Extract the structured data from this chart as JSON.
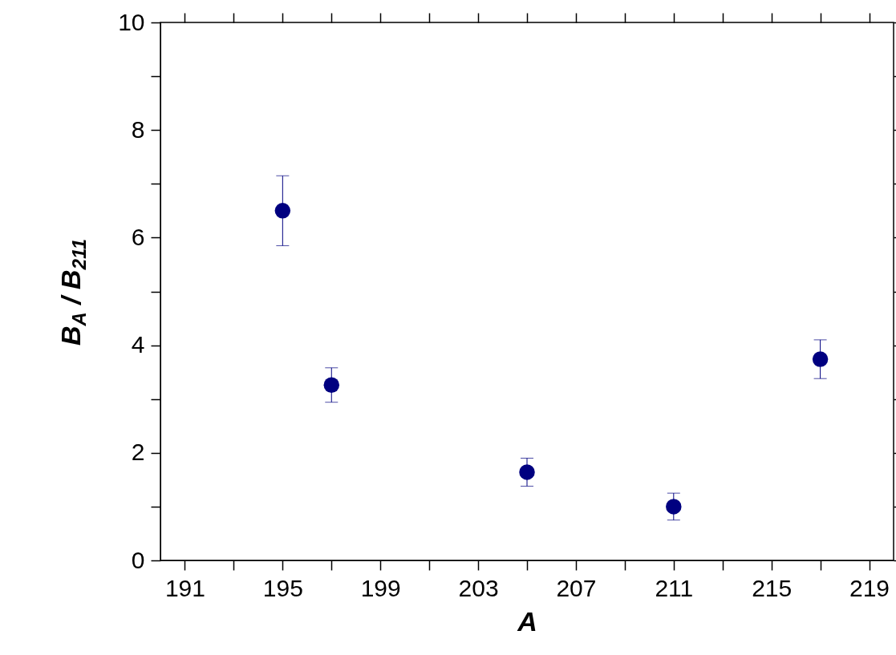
{
  "chart_data": {
    "type": "scatter",
    "xlabel": "A",
    "ylabel": "B$_{A}$ / B$_{211}$",
    "x": [
      195,
      197,
      205,
      211,
      217
    ],
    "series": [
      {
        "color": "#000080",
        "values": [
          6.5,
          3.26,
          1.64,
          1.0,
          3.74
        ],
        "errors": [
          0.65,
          0.32,
          0.26,
          0.25,
          0.36
        ]
      }
    ],
    "marker": "circle",
    "xlim": [
      190,
      220
    ],
    "xticks": [
      191,
      {
        "value": 193,
        "label": null
      },
      195,
      {
        "value": 197,
        "label": null
      },
      199,
      {
        "value": 201,
        "label": null
      },
      203,
      {
        "value": 205,
        "label": null
      },
      207,
      {
        "value": 209,
        "label": null
      },
      211,
      {
        "value": 213,
        "label": null
      },
      215,
      {
        "value": 217,
        "label": null
      },
      219
    ],
    "ylim": [
      0,
      10
    ],
    "yticks": [
      0,
      {
        "value": 1,
        "label": null
      },
      2,
      {
        "value": 3,
        "label": null
      },
      4,
      {
        "value": 5,
        "label": null
      },
      6,
      {
        "value": 7,
        "label": null
      },
      8,
      {
        "value": 9,
        "label": null
      },
      10
    ],
    "grid": false
  }
}
